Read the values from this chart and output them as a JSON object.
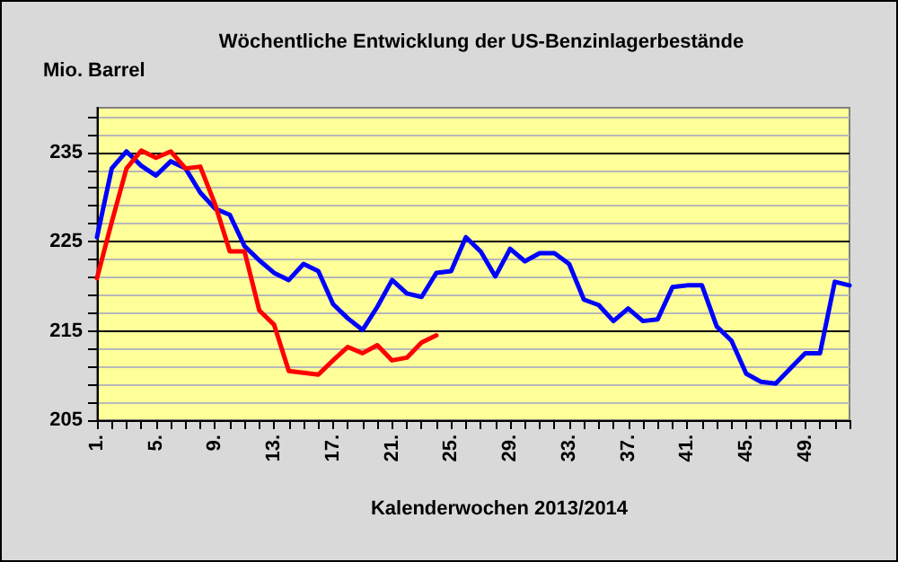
{
  "chart_data": {
    "type": "line",
    "title": "Wöchentliche Entwicklung der US-Benzinlagerbestände",
    "ylabel": "Mio. Barrel",
    "xlabel": "Kalenderwochen 2013/2014",
    "categories": [
      "1.",
      null,
      null,
      null,
      "5.",
      null,
      null,
      null,
      "9.",
      null,
      null,
      null,
      "13.",
      null,
      null,
      null,
      "17.",
      null,
      null,
      null,
      "21.",
      null,
      null,
      null,
      "25.",
      null,
      null,
      null,
      "29.",
      null,
      null,
      null,
      "33.",
      null,
      null,
      null,
      "37.",
      null,
      null,
      null,
      "41.",
      null,
      null,
      null,
      "45.",
      null,
      null,
      null,
      "49.",
      null,
      null,
      null
    ],
    "series": [
      {
        "color": "#0000ff",
        "values": [
          225.5,
          233.2,
          235.1,
          233.5,
          232.4,
          234.0,
          233.2,
          230.5,
          228.7,
          228.0,
          224.5,
          222.9,
          221.5,
          220.7,
          222.5,
          221.7,
          218.0,
          216.4,
          215.1,
          217.7,
          220.7,
          219.2,
          218.8,
          221.5,
          221.7,
          225.5,
          223.9,
          221.1,
          224.2,
          222.8,
          223.7,
          223.7,
          222.5,
          218.5,
          217.9,
          216.1,
          217.5,
          216.1,
          216.3,
          219.9,
          220.1,
          220.1,
          215.5,
          213.9,
          210.2,
          209.3,
          209.1,
          210.8,
          212.5,
          212.5,
          220.5,
          220.1
        ]
      },
      {
        "color": "#ff0000",
        "values": [
          220.9,
          227.2,
          233.2,
          235.2,
          234.4,
          235.1,
          233.2,
          233.4,
          229.2,
          223.9,
          223.9,
          217.3,
          215.7,
          210.5,
          210.3,
          210.1,
          211.7,
          213.2,
          212.5,
          213.4,
          211.7,
          212.0,
          213.7,
          214.5,
          null,
          null,
          null,
          null,
          null,
          null,
          null,
          null,
          null,
          null,
          null,
          null,
          null,
          null,
          null,
          null,
          null,
          null,
          null,
          null,
          null,
          null,
          null,
          null,
          null,
          null,
          null,
          null
        ]
      }
    ],
    "ylim": [
      205,
      240
    ],
    "yticks": [
      205,
      {
        "value": 207,
        "label": null
      },
      {
        "value": 209,
        "label": null
      },
      {
        "value": 211,
        "label": null
      },
      {
        "value": 213,
        "label": null
      },
      215,
      {
        "value": 217,
        "label": null
      },
      {
        "value": 219,
        "label": null
      },
      {
        "value": 221,
        "label": null
      },
      {
        "value": 223,
        "label": null
      },
      225,
      {
        "value": 227,
        "label": null
      },
      {
        "value": 229,
        "label": null
      },
      {
        "value": 231,
        "label": null
      },
      {
        "value": 233,
        "label": null
      },
      235,
      {
        "value": 237,
        "label": null
      },
      {
        "value": 239,
        "label": null
      }
    ],
    "grid": "y",
    "marker": "none",
    "line_style": "solid"
  }
}
